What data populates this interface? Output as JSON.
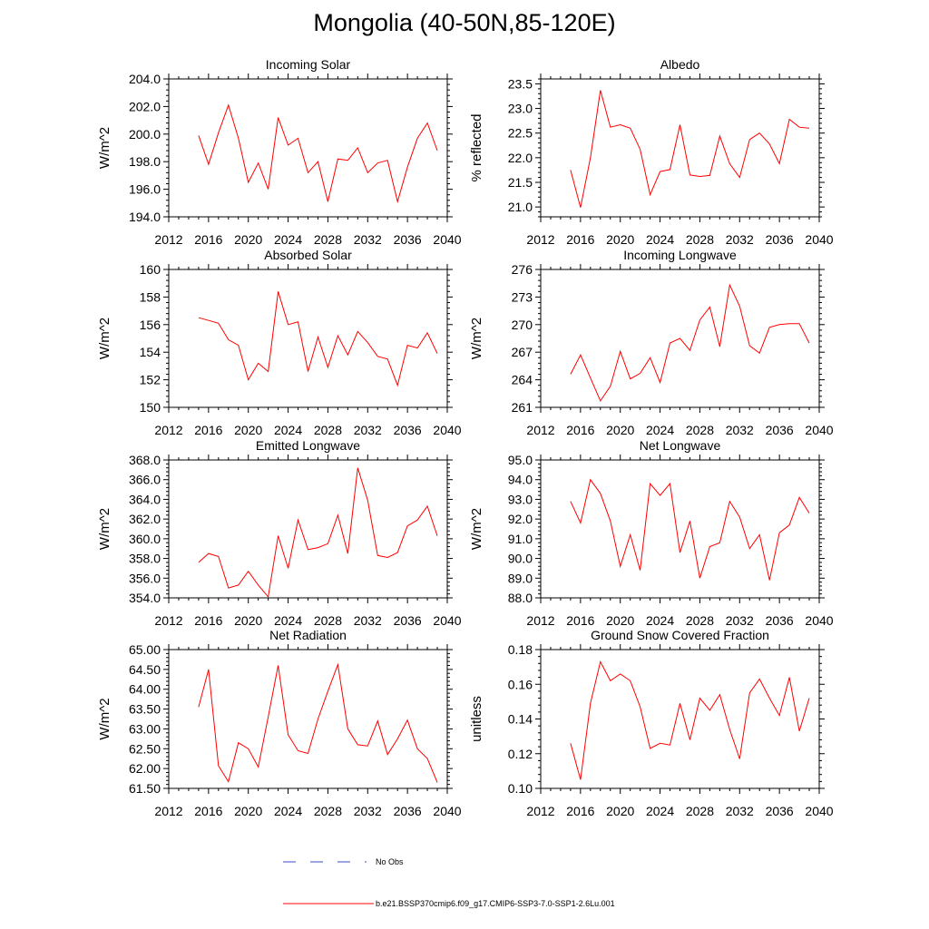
{
  "title": "Mongolia (40-50N,85-120E)",
  "legend": {
    "obs_label": "No Obs",
    "obs_color": "#3a4fc4",
    "model_label": "b.e21.BSSP370cmip6.f09_g17.CMIP6-SSP3-7.0-SSP1-2.6Lu.001",
    "model_color": "#ff0000"
  },
  "chart_data": [
    {
      "type": "line",
      "title": "Incoming Solar",
      "ylabel": "W/m^2",
      "xlim": [
        2012,
        2040
      ],
      "xticks": [
        "2012",
        "2016",
        "2020",
        "2024",
        "2028",
        "2032",
        "2036",
        "2040"
      ],
      "ylim": [
        194.0,
        204.0
      ],
      "yticks": [
        "194.0",
        "196.0",
        "198.0",
        "200.0",
        "202.0",
        "204.0"
      ],
      "series": [
        {
          "x": [
            2015,
            2016,
            2017,
            2018,
            2019,
            2020,
            2021,
            2022,
            2023,
            2024,
            2025,
            2026,
            2027,
            2028,
            2029,
            2030,
            2031,
            2032,
            2033,
            2034,
            2035,
            2036,
            2037,
            2038,
            2039
          ],
          "values": [
            199.9,
            197.8,
            200.1,
            202.1,
            199.7,
            196.5,
            197.9,
            196.0,
            201.2,
            199.2,
            199.7,
            197.2,
            198.0,
            195.1,
            198.2,
            198.1,
            199.0,
            197.2,
            197.9,
            198.1,
            195.1,
            197.6,
            199.7,
            200.8,
            198.8
          ]
        }
      ]
    },
    {
      "type": "line",
      "title": "Albedo",
      "ylabel": "% reflected",
      "xlim": [
        2012,
        2040
      ],
      "xticks": [
        "2012",
        "2016",
        "2020",
        "2024",
        "2028",
        "2032",
        "2036",
        "2040"
      ],
      "ylim": [
        20.8,
        23.6
      ],
      "yticks": [
        "21.0",
        "21.5",
        "22.0",
        "22.5",
        "23.0",
        "23.5"
      ],
      "series": [
        {
          "x": [
            2015,
            2016,
            2017,
            2018,
            2019,
            2020,
            2021,
            2022,
            2023,
            2024,
            2025,
            2026,
            2027,
            2028,
            2029,
            2030,
            2031,
            2032,
            2033,
            2034,
            2035,
            2036,
            2037,
            2038,
            2039
          ],
          "values": [
            21.75,
            20.99,
            22.0,
            23.37,
            22.62,
            22.67,
            22.6,
            22.17,
            21.25,
            21.72,
            21.76,
            22.67,
            21.65,
            21.62,
            21.64,
            22.44,
            21.88,
            21.6,
            22.37,
            22.5,
            22.28,
            21.88,
            22.78,
            22.62,
            22.6
          ]
        }
      ]
    },
    {
      "type": "line",
      "title": "Absorbed Solar",
      "ylabel": "W/m^2",
      "xlim": [
        2012,
        2040
      ],
      "xticks": [
        "2012",
        "2016",
        "2020",
        "2024",
        "2028",
        "2032",
        "2036",
        "2040"
      ],
      "ylim": [
        150,
        160
      ],
      "yticks": [
        "150",
        "152",
        "154",
        "156",
        "158",
        "160"
      ],
      "series": [
        {
          "x": [
            2015,
            2016,
            2017,
            2018,
            2019,
            2020,
            2021,
            2022,
            2023,
            2024,
            2025,
            2026,
            2027,
            2028,
            2029,
            2030,
            2031,
            2032,
            2033,
            2034,
            2035,
            2036,
            2037,
            2038,
            2039
          ],
          "values": [
            156.5,
            156.3,
            156.1,
            154.9,
            154.5,
            152.0,
            153.2,
            152.6,
            158.4,
            156.0,
            156.2,
            152.6,
            155.1,
            152.9,
            155.2,
            153.8,
            155.5,
            154.7,
            153.7,
            153.5,
            151.6,
            154.5,
            154.3,
            155.4,
            153.9
          ]
        }
      ]
    },
    {
      "type": "line",
      "title": "Incoming Longwave",
      "ylabel": "W/m^2",
      "xlim": [
        2012,
        2040
      ],
      "xticks": [
        "2012",
        "2016",
        "2020",
        "2024",
        "2028",
        "2032",
        "2036",
        "2040"
      ],
      "ylim": [
        261,
        276
      ],
      "yticks": [
        "261",
        "264",
        "267",
        "270",
        "273",
        "276"
      ],
      "series": [
        {
          "x": [
            2015,
            2016,
            2017,
            2018,
            2019,
            2020,
            2021,
            2022,
            2023,
            2024,
            2025,
            2026,
            2027,
            2028,
            2029,
            2030,
            2031,
            2032,
            2033,
            2034,
            2035,
            2036,
            2037,
            2038,
            2039
          ],
          "values": [
            264.6,
            266.7,
            264.2,
            261.7,
            263.3,
            267.1,
            264.1,
            264.7,
            266.4,
            263.7,
            268.0,
            268.5,
            267.2,
            270.5,
            271.9,
            267.6,
            274.3,
            272.0,
            267.7,
            266.9,
            269.7,
            270.0,
            270.1,
            270.1,
            268.0
          ]
        }
      ]
    },
    {
      "type": "line",
      "title": "Emitted Longwave",
      "ylabel": "W/m^2",
      "xlim": [
        2012,
        2040
      ],
      "xticks": [
        "2012",
        "2016",
        "2020",
        "2024",
        "2028",
        "2032",
        "2036",
        "2040"
      ],
      "ylim": [
        354.0,
        368.0
      ],
      "yticks": [
        "354.0",
        "356.0",
        "358.0",
        "360.0",
        "362.0",
        "364.0",
        "366.0",
        "368.0"
      ],
      "series": [
        {
          "x": [
            2015,
            2016,
            2017,
            2018,
            2019,
            2020,
            2021,
            2022,
            2023,
            2024,
            2025,
            2026,
            2027,
            2028,
            2029,
            2030,
            2031,
            2032,
            2033,
            2034,
            2035,
            2036,
            2037,
            2038,
            2039
          ],
          "values": [
            357.6,
            358.5,
            358.2,
            355.0,
            355.3,
            356.7,
            355.3,
            354.1,
            360.3,
            357.0,
            361.9,
            358.9,
            359.1,
            359.5,
            362.4,
            358.5,
            367.2,
            363.9,
            358.3,
            358.1,
            358.6,
            361.3,
            361.9,
            363.3,
            360.3
          ]
        }
      ]
    },
    {
      "type": "line",
      "title": "Net Longwave",
      "ylabel": "W/m^2",
      "xlim": [
        2012,
        2040
      ],
      "xticks": [
        "2012",
        "2016",
        "2020",
        "2024",
        "2028",
        "2032",
        "2036",
        "2040"
      ],
      "ylim": [
        88.0,
        95.0
      ],
      "yticks": [
        "88.0",
        "89.0",
        "90.0",
        "91.0",
        "92.0",
        "93.0",
        "94.0",
        "95.0"
      ],
      "series": [
        {
          "x": [
            2015,
            2016,
            2017,
            2018,
            2019,
            2020,
            2021,
            2022,
            2023,
            2024,
            2025,
            2026,
            2027,
            2028,
            2029,
            2030,
            2031,
            2032,
            2033,
            2034,
            2035,
            2036,
            2037,
            2038,
            2039
          ],
          "values": [
            92.9,
            91.8,
            94.0,
            93.3,
            91.9,
            89.6,
            91.2,
            89.4,
            93.8,
            93.2,
            93.8,
            90.3,
            91.9,
            89.0,
            90.6,
            90.8,
            92.9,
            92.1,
            90.5,
            91.2,
            88.9,
            91.3,
            91.7,
            93.1,
            92.3
          ]
        }
      ]
    },
    {
      "type": "line",
      "title": "Net Radiation",
      "ylabel": "W/m^2",
      "xlim": [
        2012,
        2040
      ],
      "xticks": [
        "2012",
        "2016",
        "2020",
        "2024",
        "2028",
        "2032",
        "2036",
        "2040"
      ],
      "ylim": [
        61.5,
        65.0
      ],
      "yticks": [
        "61.50",
        "62.00",
        "62.50",
        "63.00",
        "63.50",
        "64.00",
        "64.50",
        "65.00"
      ],
      "series": [
        {
          "x": [
            2015,
            2016,
            2017,
            2018,
            2019,
            2020,
            2021,
            2022,
            2023,
            2024,
            2025,
            2026,
            2027,
            2028,
            2029,
            2030,
            2031,
            2032,
            2033,
            2034,
            2035,
            2036,
            2037,
            2038,
            2039
          ],
          "values": [
            63.55,
            64.5,
            62.07,
            61.67,
            62.65,
            62.5,
            62.04,
            63.3,
            64.6,
            62.85,
            62.45,
            62.38,
            63.25,
            63.95,
            64.62,
            63.0,
            62.6,
            62.57,
            63.2,
            62.35,
            62.75,
            63.22,
            62.5,
            62.25,
            61.65
          ]
        }
      ]
    },
    {
      "type": "line",
      "title": "Ground Snow Covered Fraction",
      "ylabel": "unitless",
      "xlim": [
        2012,
        2040
      ],
      "xticks": [
        "2012",
        "2016",
        "2020",
        "2024",
        "2028",
        "2032",
        "2036",
        "2040"
      ],
      "ylim": [
        0.1,
        0.18
      ],
      "yticks": [
        "0.10",
        "0.12",
        "0.14",
        "0.16",
        "0.18"
      ],
      "series": [
        {
          "x": [
            2015,
            2016,
            2017,
            2018,
            2019,
            2020,
            2021,
            2022,
            2023,
            2024,
            2025,
            2026,
            2027,
            2028,
            2029,
            2030,
            2031,
            2032,
            2033,
            2034,
            2035,
            2036,
            2037,
            2038,
            2039
          ],
          "values": [
            0.126,
            0.105,
            0.149,
            0.173,
            0.162,
            0.166,
            0.162,
            0.147,
            0.123,
            0.126,
            0.125,
            0.149,
            0.128,
            0.152,
            0.145,
            0.154,
            0.134,
            0.117,
            0.155,
            0.163,
            0.152,
            0.142,
            0.164,
            0.133,
            0.152
          ]
        }
      ]
    }
  ]
}
